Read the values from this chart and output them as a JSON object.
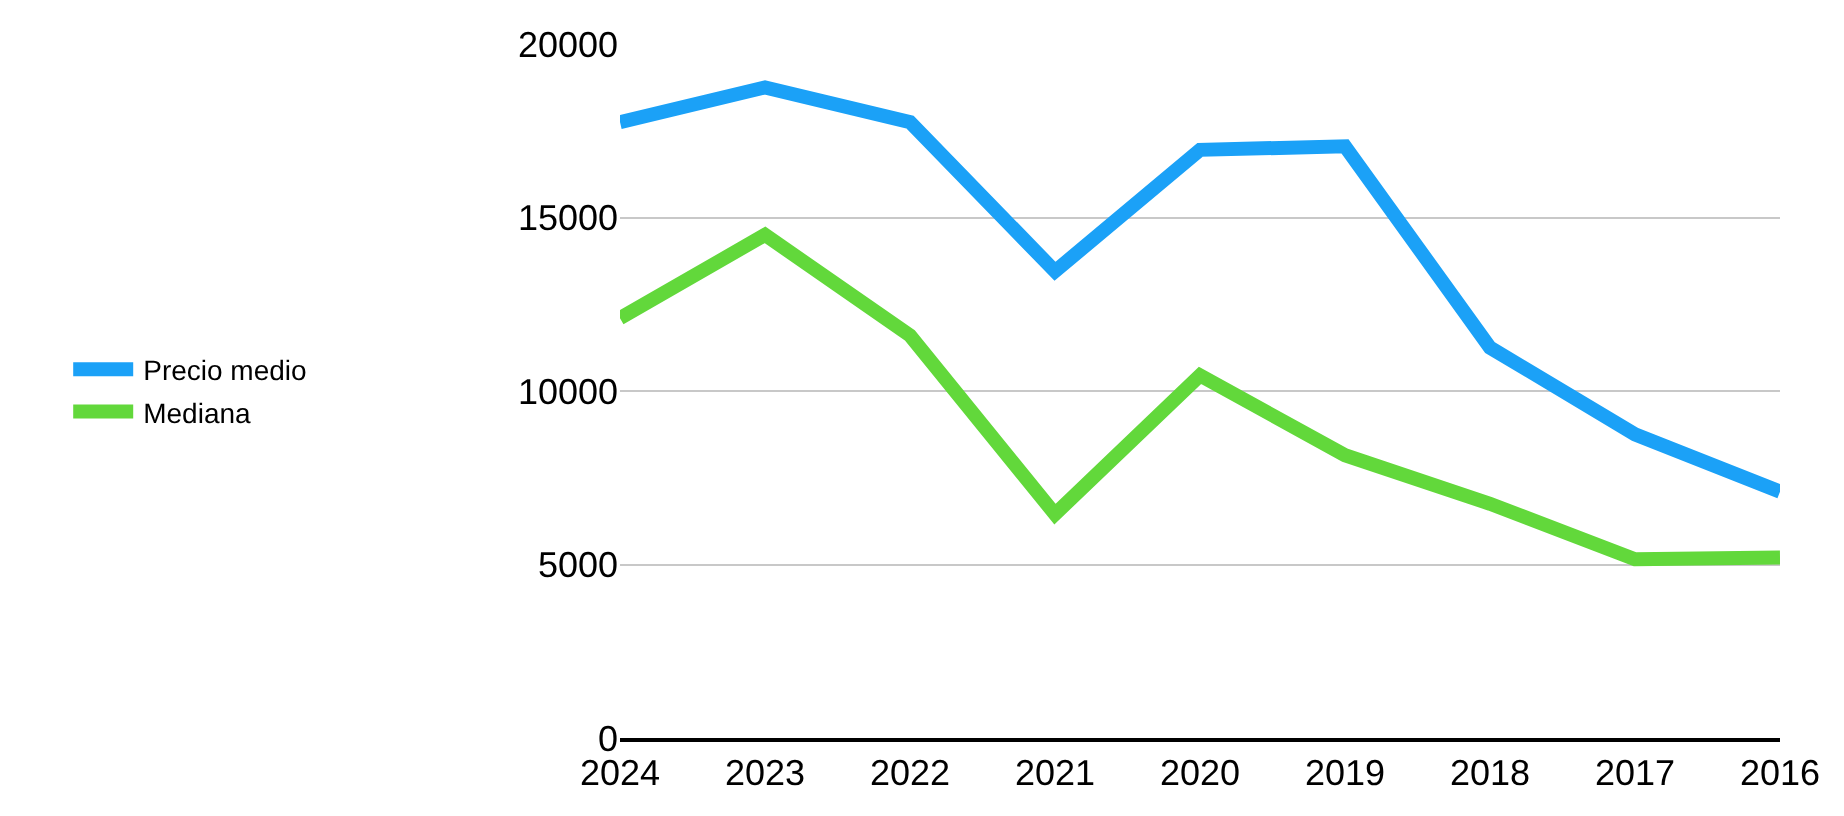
{
  "chart_data": {
    "type": "line",
    "categories": [
      "2024",
      "2023",
      "2022",
      "2021",
      "2020",
      "2019",
      "2018",
      "2017",
      "2016"
    ],
    "series": [
      {
        "name": "Precio medio",
        "color": "#1ba1f7",
        "values": [
          17750,
          18750,
          17750,
          13450,
          16950,
          17050,
          11250,
          8750,
          7100
        ]
      },
      {
        "name": "Mediana",
        "color": "#62d83b",
        "values": [
          12100,
          14500,
          11600,
          6450,
          10450,
          8150,
          6750,
          5150,
          5200
        ]
      }
    ],
    "ylim": [
      0,
      20000
    ],
    "yticks": [
      0,
      5000,
      10000,
      15000,
      20000
    ],
    "grid": "y",
    "legend": "left",
    "marker": "none",
    "line_style": "solid"
  }
}
